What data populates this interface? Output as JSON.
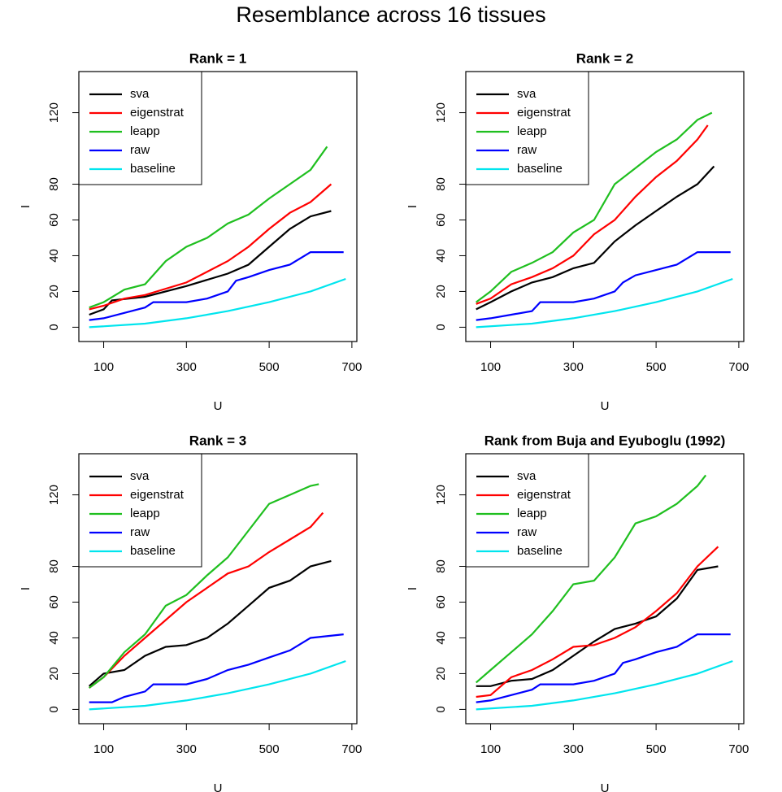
{
  "title": "Resemblance across 16 tissues",
  "chart_data": [
    {
      "type": "line",
      "title": "Rank = 1",
      "xlabel": "U",
      "ylabel": "I",
      "legend": "topleft",
      "xlim": [
        40,
        712
      ],
      "ylim": [
        -8,
        143
      ],
      "xticks": [
        100,
        300,
        500,
        700
      ],
      "yticks": [
        0,
        20,
        40,
        60,
        80,
        120
      ],
      "series": [
        {
          "name": "sva",
          "color": "#000000",
          "x": [
            65,
            100,
            120,
            200,
            300,
            400,
            450,
            500,
            550,
            600,
            650
          ],
          "values": [
            7,
            10,
            15,
            17,
            23,
            30,
            35,
            45,
            55,
            62,
            65
          ]
        },
        {
          "name": "eigenstrat",
          "color": "#ff0000",
          "x": [
            65,
            100,
            150,
            200,
            300,
            400,
            450,
            500,
            550,
            600,
            650
          ],
          "values": [
            10,
            12,
            16,
            18,
            25,
            37,
            45,
            55,
            64,
            70,
            80
          ]
        },
        {
          "name": "leapp",
          "color": "#1fbf1f",
          "x": [
            65,
            100,
            150,
            200,
            250,
            300,
            350,
            400,
            450,
            500,
            550,
            600,
            640
          ],
          "values": [
            11,
            14,
            21,
            24,
            37,
            45,
            50,
            58,
            63,
            72,
            80,
            88,
            101
          ]
        },
        {
          "name": "raw",
          "color": "#0000ff",
          "x": [
            65,
            100,
            150,
            200,
            220,
            300,
            350,
            400,
            420,
            450,
            500,
            550,
            600,
            680
          ],
          "values": [
            4,
            5,
            8,
            11,
            14,
            14,
            16,
            20,
            26,
            28,
            32,
            35,
            42,
            42
          ]
        },
        {
          "name": "baseline",
          "color": "#00e5ee",
          "x": [
            65,
            200,
            300,
            400,
            500,
            600,
            685
          ],
          "values": [
            0,
            2,
            5,
            9,
            14,
            20,
            27
          ]
        }
      ]
    },
    {
      "type": "line",
      "title": "Rank = 2",
      "xlabel": "U",
      "ylabel": "I",
      "legend": "topleft",
      "xlim": [
        40,
        712
      ],
      "ylim": [
        -8,
        143
      ],
      "xticks": [
        100,
        300,
        500,
        700
      ],
      "yticks": [
        0,
        20,
        40,
        60,
        80,
        120
      ],
      "series": [
        {
          "name": "sva",
          "color": "#000000",
          "x": [
            65,
            100,
            150,
            200,
            250,
            300,
            350,
            400,
            450,
            500,
            550,
            600,
            640
          ],
          "values": [
            10,
            14,
            20,
            25,
            28,
            33,
            36,
            48,
            57,
            65,
            73,
            80,
            90
          ]
        },
        {
          "name": "eigenstrat",
          "color": "#ff0000",
          "x": [
            65,
            100,
            150,
            200,
            250,
            300,
            350,
            400,
            450,
            500,
            550,
            600,
            625
          ],
          "values": [
            13,
            16,
            24,
            28,
            33,
            40,
            52,
            60,
            73,
            84,
            93,
            105,
            113
          ]
        },
        {
          "name": "leapp",
          "color": "#1fbf1f",
          "x": [
            65,
            100,
            150,
            200,
            250,
            300,
            350,
            400,
            450,
            500,
            550,
            600,
            635
          ],
          "values": [
            14,
            20,
            31,
            36,
            42,
            53,
            60,
            80,
            89,
            98,
            105,
            116,
            120
          ]
        },
        {
          "name": "raw",
          "color": "#0000ff",
          "x": [
            65,
            100,
            150,
            200,
            220,
            300,
            350,
            400,
            420,
            450,
            500,
            550,
            600,
            680
          ],
          "values": [
            4,
            5,
            7,
            9,
            14,
            14,
            16,
            20,
            25,
            29,
            32,
            35,
            42,
            42
          ]
        },
        {
          "name": "baseline",
          "color": "#00e5ee",
          "x": [
            65,
            200,
            300,
            400,
            500,
            600,
            685
          ],
          "values": [
            0,
            2,
            5,
            9,
            14,
            20,
            27
          ]
        }
      ]
    },
    {
      "type": "line",
      "title": "Rank = 3",
      "xlabel": "U",
      "ylabel": "I",
      "legend": "topleft",
      "xlim": [
        40,
        712
      ],
      "ylim": [
        -8,
        143
      ],
      "xticks": [
        100,
        300,
        500,
        700
      ],
      "yticks": [
        0,
        20,
        40,
        60,
        80,
        120
      ],
      "series": [
        {
          "name": "sva",
          "color": "#000000",
          "x": [
            65,
            100,
            150,
            200,
            250,
            300,
            350,
            400,
            450,
            500,
            550,
            600,
            650
          ],
          "values": [
            13,
            20,
            22,
            30,
            35,
            36,
            40,
            48,
            58,
            68,
            72,
            80,
            83
          ]
        },
        {
          "name": "eigenstrat",
          "color": "#ff0000",
          "x": [
            65,
            100,
            150,
            200,
            250,
            300,
            350,
            400,
            450,
            500,
            550,
            600,
            630
          ],
          "values": [
            12,
            18,
            30,
            40,
            50,
            60,
            68,
            76,
            80,
            88,
            95,
            102,
            110
          ]
        },
        {
          "name": "leapp",
          "color": "#1fbf1f",
          "x": [
            65,
            100,
            150,
            200,
            250,
            300,
            350,
            400,
            450,
            500,
            550,
            600,
            620
          ],
          "values": [
            12,
            18,
            32,
            42,
            58,
            64,
            75,
            85,
            100,
            115,
            120,
            125,
            126
          ]
        },
        {
          "name": "raw",
          "color": "#0000ff",
          "x": [
            65,
            120,
            150,
            200,
            220,
            300,
            350,
            400,
            450,
            500,
            550,
            600,
            680
          ],
          "values": [
            4,
            4,
            7,
            10,
            14,
            14,
            17,
            22,
            25,
            29,
            33,
            40,
            42
          ]
        },
        {
          "name": "baseline",
          "color": "#00e5ee",
          "x": [
            65,
            200,
            300,
            400,
            500,
            600,
            685
          ],
          "values": [
            0,
            2,
            5,
            9,
            14,
            20,
            27
          ]
        }
      ]
    },
    {
      "type": "line",
      "title": "Rank from Buja and Eyuboglu (1992)",
      "xlabel": "U",
      "ylabel": "I",
      "legend": "topleft",
      "xlim": [
        40,
        712
      ],
      "ylim": [
        -8,
        143
      ],
      "xticks": [
        100,
        300,
        500,
        700
      ],
      "yticks": [
        0,
        20,
        40,
        60,
        80,
        120
      ],
      "series": [
        {
          "name": "sva",
          "color": "#000000",
          "x": [
            65,
            100,
            150,
            200,
            250,
            300,
            350,
            400,
            450,
            500,
            550,
            600,
            650
          ],
          "values": [
            13,
            13,
            16,
            17,
            22,
            30,
            38,
            45,
            48,
            52,
            62,
            78,
            80
          ]
        },
        {
          "name": "eigenstrat",
          "color": "#ff0000",
          "x": [
            65,
            100,
            150,
            200,
            250,
            300,
            350,
            400,
            450,
            500,
            550,
            600,
            650
          ],
          "values": [
            7,
            8,
            18,
            22,
            28,
            35,
            36,
            40,
            46,
            55,
            65,
            80,
            91
          ]
        },
        {
          "name": "leapp",
          "color": "#1fbf1f",
          "x": [
            65,
            100,
            150,
            200,
            250,
            300,
            350,
            400,
            450,
            500,
            550,
            600,
            620
          ],
          "values": [
            15,
            22,
            32,
            42,
            55,
            70,
            72,
            85,
            104,
            108,
            115,
            125,
            131
          ]
        },
        {
          "name": "raw",
          "color": "#0000ff",
          "x": [
            65,
            100,
            150,
            200,
            220,
            300,
            350,
            400,
            420,
            450,
            500,
            550,
            600,
            680
          ],
          "values": [
            4,
            5,
            8,
            11,
            14,
            14,
            16,
            20,
            26,
            28,
            32,
            35,
            42,
            42
          ]
        },
        {
          "name": "baseline",
          "color": "#00e5ee",
          "x": [
            65,
            200,
            300,
            400,
            500,
            600,
            685
          ],
          "values": [
            0,
            2,
            5,
            9,
            14,
            20,
            27
          ]
        }
      ]
    }
  ]
}
